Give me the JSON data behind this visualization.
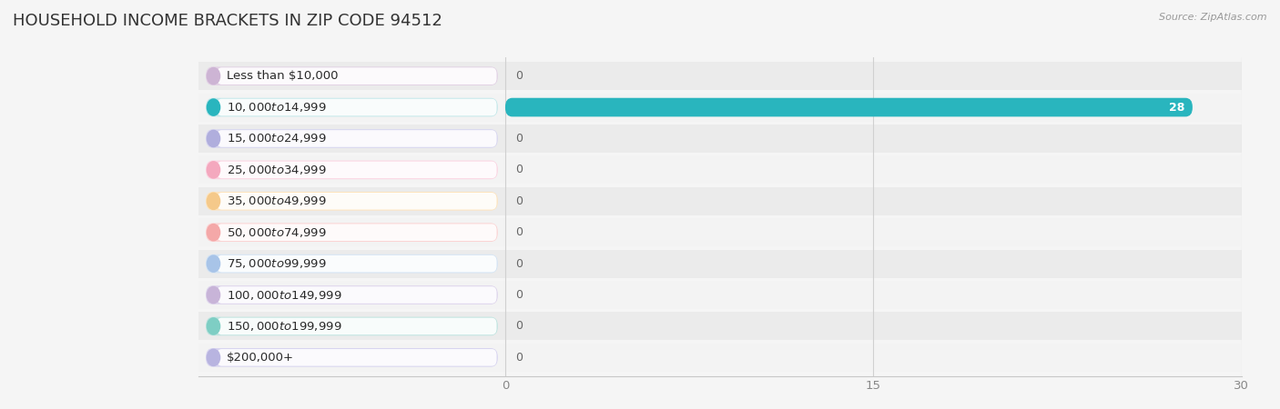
{
  "title": "HOUSEHOLD INCOME BRACKETS IN ZIP CODE 94512",
  "source": "Source: ZipAtlas.com",
  "categories": [
    "Less than $10,000",
    "$10,000 to $14,999",
    "$15,000 to $24,999",
    "$25,000 to $34,999",
    "$35,000 to $49,999",
    "$50,000 to $74,999",
    "$75,000 to $99,999",
    "$100,000 to $149,999",
    "$150,000 to $199,999",
    "$200,000+"
  ],
  "values": [
    0,
    28,
    0,
    0,
    0,
    0,
    0,
    0,
    0,
    0
  ],
  "bar_colors": [
    "#cdb4d4",
    "#29b5be",
    "#b0aedd",
    "#f4a8be",
    "#f5c98a",
    "#f4a8a8",
    "#a8c4e8",
    "#c8b4d8",
    "#7ecec4",
    "#b8b4e0"
  ],
  "label_bg_colors": [
    "#e2d2e5",
    "#c5e8ea",
    "#d8d6f0",
    "#fbd4e2",
    "#fde4be",
    "#fbd4d4",
    "#d4e4f4",
    "#ddd4ec",
    "#c0e4e0",
    "#d8d4f0"
  ],
  "row_bg_colors": [
    "#ebebeb",
    "#f3f3f3"
  ],
  "xlim": [
    0,
    30
  ],
  "xticks": [
    0,
    15,
    30
  ],
  "background_color": "#f5f5f5",
  "title_fontsize": 13,
  "label_fontsize": 9.5,
  "value_fontsize": 9
}
